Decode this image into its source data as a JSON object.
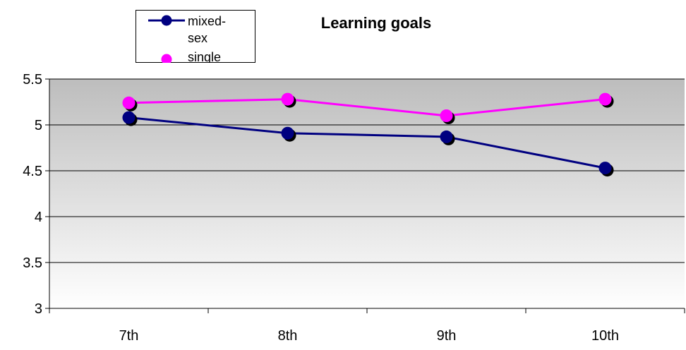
{
  "chart_data": {
    "type": "line",
    "title": "Learning goals",
    "xlabel": "",
    "ylabel": "",
    "categories": [
      "7th",
      "8th",
      "9th",
      "10th"
    ],
    "ylim": [
      3,
      5.5
    ],
    "yticks": [
      "3",
      "3.5",
      "4",
      "4.5",
      "5",
      "5.5"
    ],
    "grid": true,
    "legend": "top-left",
    "series": [
      {
        "name": "mixed-sex",
        "legend_lines": [
          "mixed-",
          "sex"
        ],
        "values": [
          5.08,
          4.91,
          4.87,
          4.53
        ],
        "color": "#000080"
      },
      {
        "name": "single",
        "legend_lines": [
          "single"
        ],
        "values": [
          5.24,
          5.28,
          5.1,
          5.28
        ],
        "color": "#ff00ff"
      }
    ]
  }
}
